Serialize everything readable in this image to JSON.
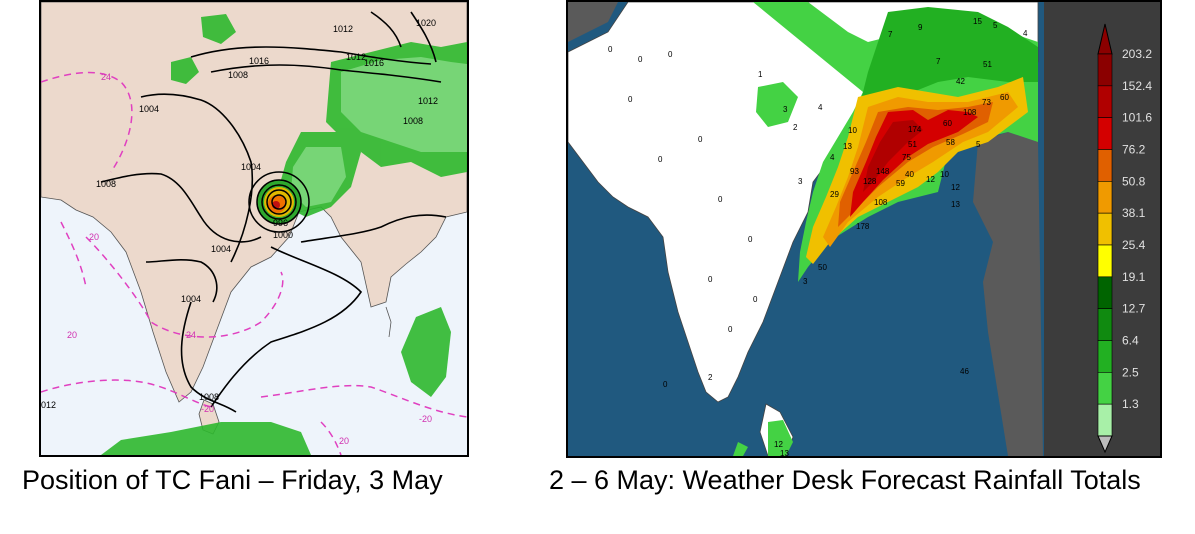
{
  "left_map": {
    "caption": "Position of TC Fani – Friday, 3 May",
    "isobar_labels": [
      "1012",
      "1016",
      "1020",
      "1012",
      "1008",
      "1008",
      "1004",
      "1008",
      "1004",
      "996",
      "1000",
      "1004",
      "1004",
      "1008",
      "012",
      "1016",
      "1012"
    ],
    "dashed_labels": [
      "24",
      "20",
      "20",
      "24",
      "-20",
      "20",
      "-20"
    ],
    "colors": {
      "land": "#ecd9cc",
      "sea": "#eef4fb",
      "rain": "#33c233",
      "isobar": "#000000",
      "dashed": "#e040c0"
    }
  },
  "right_map": {
    "caption": "2 – 6 May:  Weather Desk Forecast Rainfall Totals",
    "legend_values": [
      "203.2",
      "152.4",
      "101.6",
      "76.2",
      "50.8",
      "38.1",
      "25.4",
      "19.1",
      "12.7",
      "6.4",
      "2.5",
      "1.3"
    ],
    "legend_colors": [
      "#8b0000",
      "#b00000",
      "#d40000",
      "#e06000",
      "#f09a00",
      "#f0c000",
      "#ffff00",
      "#006400",
      "#108a10",
      "#22b022",
      "#44d244",
      "#a8f0a8"
    ],
    "rain_labels": [
      "9",
      "15",
      "5",
      "7",
      "4",
      "7",
      "51",
      "42",
      "73",
      "60",
      "108",
      "174",
      "60",
      "10",
      "13",
      "51",
      "58",
      "5",
      "4",
      "3",
      "93",
      "128",
      "148",
      "75",
      "40",
      "59",
      "12",
      "10",
      "12",
      "29",
      "108",
      "13",
      "178",
      "50",
      "3",
      "12",
      "13",
      "46",
      "0",
      "0",
      "0",
      "0",
      "0",
      "0",
      "0",
      "0",
      "1",
      "3",
      "4",
      "2",
      "0",
      "0",
      "0",
      "0",
      "2"
    ],
    "colors": {
      "land": "#ffffff",
      "sea": "#20597f",
      "neighbour": "#5a5a5a",
      "legend_bg": "#3c3c3c"
    }
  }
}
